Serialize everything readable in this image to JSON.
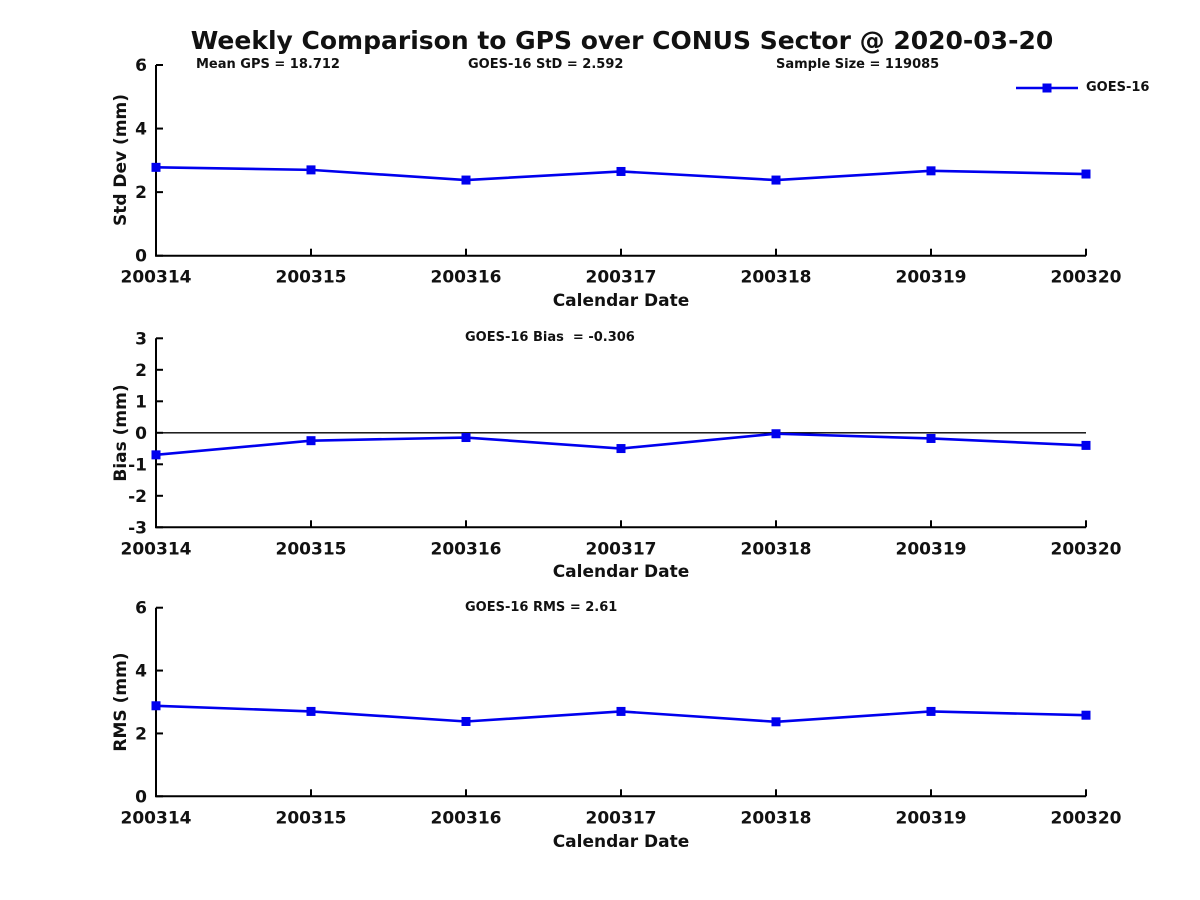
{
  "title": "Weekly Comparison to GPS over CONUS Sector @ 2020-03-20",
  "legend": {
    "label": "GOES-16",
    "position": "top-right"
  },
  "colors": {
    "series": "#0000ee",
    "axis": "#000000",
    "text": "#111111"
  },
  "chart_data": [
    {
      "id": "std-dev",
      "type": "line",
      "ylabel": "Std Dev (mm)",
      "xlabel": "Calendar Date",
      "categories": [
        "200314",
        "200315",
        "200316",
        "200317",
        "200318",
        "200319",
        "200320"
      ],
      "series": [
        {
          "name": "GOES-16",
          "values": [
            2.78,
            2.7,
            2.38,
            2.65,
            2.38,
            2.67,
            2.57
          ]
        }
      ],
      "ylim": [
        0,
        6
      ],
      "yticks": [
        0,
        2,
        4,
        6
      ],
      "grid": false,
      "marker": "square",
      "annotations": [
        "Mean GPS = 18.712",
        "GOES-16 StD = 2.592",
        "Sample Size = 119085"
      ]
    },
    {
      "id": "bias",
      "type": "line",
      "ylabel": "Bias (mm)",
      "xlabel": "Calendar Date",
      "categories": [
        "200314",
        "200315",
        "200316",
        "200317",
        "200318",
        "200319",
        "200320"
      ],
      "series": [
        {
          "name": "GOES-16",
          "values": [
            -0.7,
            -0.25,
            -0.15,
            -0.5,
            -0.03,
            -0.18,
            -0.4
          ]
        }
      ],
      "ylim": [
        -3,
        3
      ],
      "yticks": [
        -3,
        -2,
        -1,
        0,
        1,
        2,
        3
      ],
      "zero_line": true,
      "grid": false,
      "marker": "square",
      "annotations": [
        "GOES-16 Bias  = -0.306"
      ]
    },
    {
      "id": "rms",
      "type": "line",
      "ylabel": "RMS (mm)",
      "xlabel": "Calendar Date",
      "categories": [
        "200314",
        "200315",
        "200316",
        "200317",
        "200318",
        "200319",
        "200320"
      ],
      "series": [
        {
          "name": "GOES-16",
          "values": [
            2.88,
            2.7,
            2.38,
            2.7,
            2.37,
            2.7,
            2.58
          ]
        }
      ],
      "ylim": [
        0,
        6
      ],
      "yticks": [
        0,
        2,
        4,
        6
      ],
      "grid": false,
      "marker": "square",
      "annotations": [
        "GOES-16 RMS = 2.61"
      ]
    }
  ]
}
